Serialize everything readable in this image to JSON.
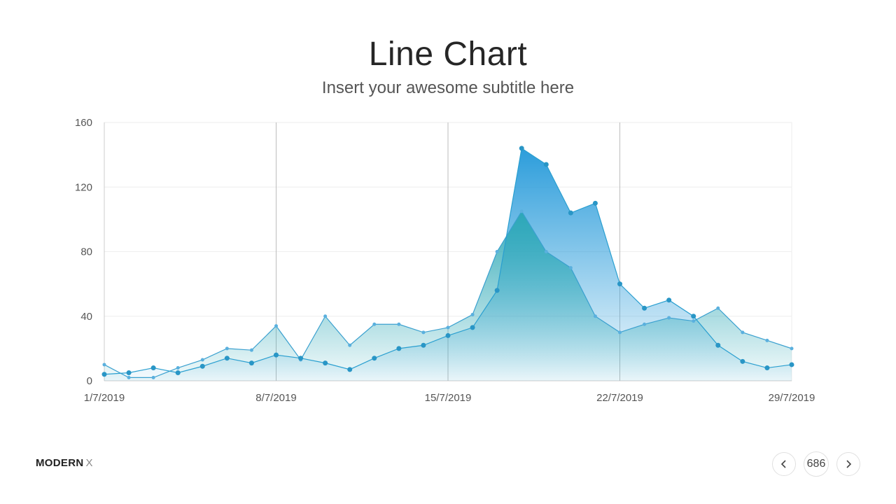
{
  "slide": {
    "title": "Line Chart",
    "subtitle": "Insert your awesome subtitle here",
    "brand_main": "MODERN",
    "brand_suffix": "X",
    "page_number": "686"
  },
  "colors": {
    "line_a": "#2a9fd0",
    "line_b": "#3aa0cf",
    "fill_a_top": "#2c9ddb",
    "fill_b_top": "#2aa7b5",
    "axis": "#bbbbbb",
    "grid": "#eeeeee"
  },
  "chart_data": {
    "type": "area",
    "title": "Line Chart",
    "subtitle": "Insert your awesome subtitle here",
    "xlabel": "",
    "ylabel": "",
    "ylim": [
      0,
      160
    ],
    "y_ticks": [
      0,
      40,
      80,
      120,
      160
    ],
    "x_tick_labels": [
      "1/7/2019",
      "8/7/2019",
      "15/7/2019",
      "22/7/2019",
      "29/7/2019"
    ],
    "x": [
      "1/7/2019",
      "2/7/2019",
      "3/7/2019",
      "4/7/2019",
      "5/7/2019",
      "6/7/2019",
      "7/7/2019",
      "8/7/2019",
      "9/7/2019",
      "10/7/2019",
      "11/7/2019",
      "12/7/2019",
      "13/7/2019",
      "14/7/2019",
      "15/7/2019",
      "16/7/2019",
      "17/7/2019",
      "18/7/2019",
      "19/7/2019",
      "20/7/2019",
      "21/7/2019",
      "22/7/2019",
      "23/7/2019",
      "24/7/2019",
      "25/7/2019",
      "26/7/2019",
      "27/7/2019",
      "28/7/2019",
      "29/7/2019"
    ],
    "grid": true,
    "legend": "none",
    "series": [
      {
        "values": [
          4,
          5,
          8,
          5,
          9,
          14,
          11,
          16,
          14,
          11,
          7,
          14,
          20,
          22,
          28,
          33,
          56,
          144,
          134,
          104,
          110,
          60,
          45,
          50,
          40,
          22,
          12,
          8,
          10
        ]
      },
      {
        "values": [
          10,
          2,
          2,
          8,
          13,
          20,
          19,
          34,
          13,
          40,
          22,
          35,
          35,
          30,
          33,
          41,
          80,
          105,
          80,
          70,
          40,
          30,
          35,
          39,
          37,
          45,
          30,
          25,
          20
        ]
      }
    ]
  }
}
